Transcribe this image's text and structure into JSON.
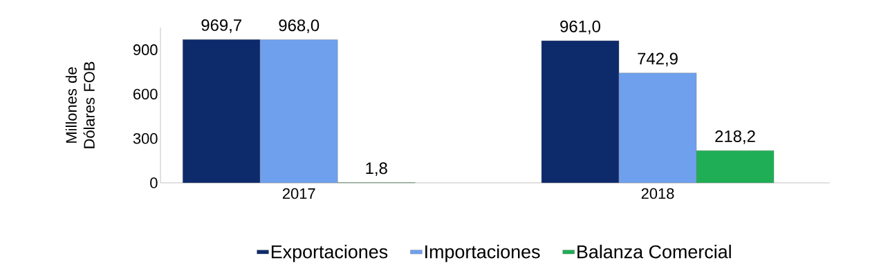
{
  "chart_data": {
    "type": "bar",
    "ylabel": "Millones de Dólares FOB",
    "categories": [
      "2017",
      "2018"
    ],
    "series": [
      {
        "name": "Exportaciones",
        "color": "#0d2a6b",
        "values": [
          969.7,
          961.0
        ],
        "value_labels": [
          "969,7",
          "961,0"
        ]
      },
      {
        "name": "Importaciones",
        "color": "#6fa0ee",
        "values": [
          968.0,
          742.9
        ],
        "value_labels": [
          "968,0",
          "742,9"
        ]
      },
      {
        "name": "Balanza Comercial",
        "color": "#1fae55",
        "values": [
          1.8,
          218.2
        ],
        "value_labels": [
          "1,8",
          "218,2"
        ]
      }
    ],
    "ylim": [
      0,
      1050
    ],
    "yticks": [
      0,
      300,
      600,
      900
    ],
    "grid": false,
    "legend": "bottom"
  }
}
